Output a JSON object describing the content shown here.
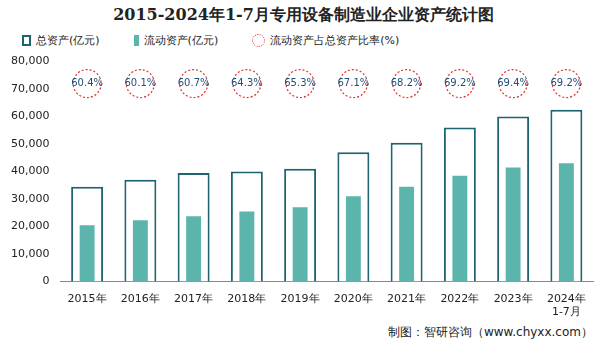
{
  "chart_data": {
    "type": "bar",
    "title": "2015-2024年1-7月专用设备制造业企业资产统计图",
    "categories": [
      "2015年",
      "2016年",
      "2017年",
      "2018年",
      "2019年",
      "2020年",
      "2021年",
      "2022年",
      "2023年",
      [
        "2024年",
        "1-7月"
      ]
    ],
    "series": [
      {
        "name": "总资产(亿元)",
        "type": "bar",
        "marker": "box_outline",
        "color": "#1e6470",
        "values": [
          34500,
          37000,
          39500,
          40000,
          41000,
          47000,
          50500,
          56000,
          60000,
          62500
        ]
      },
      {
        "name": "流动资产(亿元)",
        "type": "bar",
        "marker": "box",
        "color": "#5bb5ad",
        "values": [
          20500,
          22300,
          23800,
          25500,
          27000,
          31000,
          34500,
          38500,
          41500,
          43000
        ]
      },
      {
        "name": "流动资产占总资产比率(%)",
        "type": "text",
        "marker": "circle",
        "line_style": "dotted",
        "color": "#e03030",
        "values": [
          60.4,
          60.1,
          60.7,
          64.3,
          65.3,
          67.1,
          68.2,
          69.2,
          69.4,
          69.2
        ],
        "value_labels": [
          "60.4%",
          "60.1%",
          "60.7%",
          "64.3%",
          "65.3%",
          "67.1%",
          "68.2%",
          "69.2%",
          "69.4%",
          "69.2%"
        ]
      }
    ],
    "ylim": [
      0,
      80000
    ],
    "yticks": [
      0,
      10000,
      20000,
      30000,
      40000,
      50000,
      60000,
      70000,
      80000
    ],
    "grid": false,
    "legend": "top",
    "data_labels": true,
    "source": "制图：智研咨询（www.chyxx.com）"
  }
}
